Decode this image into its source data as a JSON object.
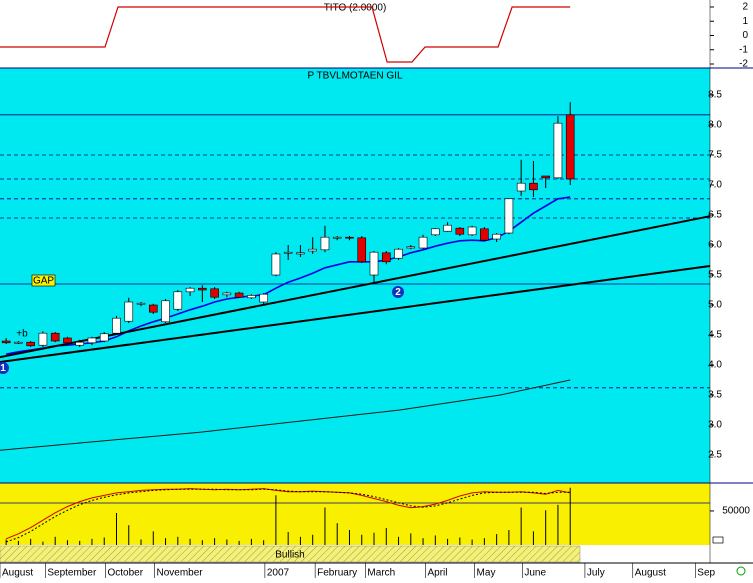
{
  "chart_data": [
    {
      "type": "line",
      "title": "TITO (2.0000)",
      "color": "#d00000",
      "x": [
        -0.5,
        8.06,
        9.12,
        29.84,
        31.07,
        33.1,
        34.17,
        40.12,
        41.26,
        46
      ],
      "values": [
        -0.81,
        -0.81,
        2,
        2,
        -1.86,
        -1.86,
        -0.81,
        -0.81,
        2,
        2
      ],
      "xlim": [
        -0.5,
        57.4
      ],
      "ylim": [
        -2.28,
        2.49
      ],
      "yticks": [
        2,
        1,
        0,
        -1,
        -2
      ]
    },
    {
      "type": "candlestick",
      "title": "P TBVLMOTAEN GIL",
      "up_color": "#ffffff",
      "down_color": "#e00000",
      "x": [
        0,
        1,
        2,
        3,
        4,
        5,
        6,
        7,
        8,
        9,
        10,
        11,
        12,
        13,
        14,
        15,
        16,
        17,
        18,
        19,
        20,
        21,
        22,
        23,
        24,
        25,
        26,
        27,
        28,
        29,
        30,
        31,
        32,
        33,
        34,
        35,
        36,
        37,
        38,
        39,
        40,
        41,
        42,
        43,
        44,
        45,
        46
      ],
      "open": [
        4.4,
        4.37,
        4.38,
        4.33,
        4.53,
        4.45,
        4.33,
        4.37,
        4.4,
        4.53,
        4.73,
        5.02,
        5.0,
        4.72,
        4.93,
        5.22,
        5.28,
        5.27,
        5.17,
        5.2,
        5.12,
        5.05,
        5.5,
        5.87,
        5.85,
        5.9,
        5.92,
        6.12,
        6.13,
        6.12,
        5.5,
        5.87,
        5.78,
        5.95,
        5.95,
        6.17,
        6.23,
        6.28,
        6.17,
        6.27,
        6.1,
        6.2,
        6.9,
        7.03,
        7.15,
        7.12,
        8.17
      ],
      "high": [
        4.45,
        4.4,
        4.4,
        4.56,
        4.55,
        4.47,
        4.42,
        4.47,
        4.55,
        4.82,
        5.12,
        5.05,
        5.02,
        5.1,
        5.25,
        5.3,
        5.33,
        5.3,
        5.22,
        5.22,
        5.18,
        5.2,
        5.88,
        6.0,
        6.0,
        6.13,
        6.32,
        6.15,
        6.15,
        6.15,
        5.9,
        5.9,
        5.95,
        6.0,
        6.17,
        6.28,
        6.38,
        6.3,
        6.32,
        6.3,
        6.2,
        6.78,
        7.42,
        7.4,
        7.15,
        8.15,
        8.38
      ],
      "low": [
        4.35,
        4.35,
        4.3,
        4.3,
        4.38,
        4.35,
        4.3,
        4.33,
        4.38,
        4.5,
        4.7,
        4.98,
        4.85,
        4.7,
        4.9,
        5.15,
        5.05,
        5.1,
        5.13,
        5.12,
        5.1,
        5.0,
        5.48,
        5.75,
        5.8,
        5.85,
        5.88,
        6.08,
        6.08,
        5.7,
        5.35,
        5.68,
        5.75,
        5.93,
        5.93,
        6.15,
        6.22,
        6.15,
        6.15,
        6.07,
        6.05,
        6.18,
        6.82,
        6.8,
        6.95,
        7.1,
        7.0
      ],
      "close": [
        4.37,
        4.38,
        4.32,
        4.53,
        4.4,
        4.37,
        4.38,
        4.45,
        4.52,
        4.78,
        5.05,
        5.03,
        4.88,
        5.07,
        5.22,
        5.28,
        5.25,
        5.13,
        5.2,
        5.13,
        5.16,
        5.18,
        5.85,
        5.88,
        5.87,
        5.93,
        6.13,
        6.13,
        6.12,
        5.72,
        5.88,
        5.72,
        5.93,
        5.97,
        6.13,
        6.27,
        6.33,
        6.18,
        6.3,
        6.08,
        6.18,
        6.77,
        7.03,
        6.92,
        7.12,
        8.03,
        7.1
      ],
      "lines": [
        {
          "color": "#0000e0",
          "x": [
            0,
            1,
            2,
            3,
            4,
            5,
            6,
            7,
            8,
            9,
            10,
            11,
            12,
            13,
            14,
            15,
            16,
            17,
            18,
            19,
            20,
            21,
            22,
            23,
            24,
            25,
            26,
            27,
            28,
            29,
            30,
            31,
            32,
            33,
            34,
            35,
            36,
            37,
            38,
            39,
            40,
            41,
            42,
            43,
            44,
            45,
            46
          ],
          "values": [
            4.18,
            4.22,
            4.25,
            4.28,
            4.32,
            4.33,
            4.35,
            4.37,
            4.4,
            4.47,
            4.57,
            4.65,
            4.72,
            4.78,
            4.85,
            4.92,
            4.98,
            5.05,
            5.1,
            5.13,
            5.15,
            5.17,
            5.28,
            5.38,
            5.45,
            5.53,
            5.62,
            5.67,
            5.72,
            5.72,
            5.72,
            5.75,
            5.8,
            5.87,
            5.92,
            5.98,
            6.03,
            6.07,
            6.08,
            6.07,
            6.12,
            6.23,
            6.38,
            6.53,
            6.65,
            6.77,
            6.8
          ]
        },
        {
          "color": "#000000",
          "x": [
            -0.5,
            57.4
          ],
          "values": [
            4.13,
            6.48
          ]
        },
        {
          "color": "#000000",
          "x": [
            -0.5,
            57.4
          ],
          "values": [
            4.05,
            5.65
          ]
        },
        {
          "color": "#1a1a1a",
          "x": [
            -0.5,
            15.8,
            32.1,
            40.3,
            46
          ],
          "values": [
            2.58,
            2.88,
            3.25,
            3.5,
            3.75
          ]
        }
      ],
      "hlines": [
        {
          "value": 8.17,
          "style": "solid"
        },
        {
          "value": 7.5,
          "style": "dashed"
        },
        {
          "value": 7.1,
          "style": "dashed"
        },
        {
          "value": 6.77,
          "style": "dashed"
        },
        {
          "value": 6.45,
          "style": "dashed"
        },
        {
          "value": 5.35,
          "style": "solid"
        },
        {
          "value": 3.62,
          "style": "dashed"
        }
      ],
      "annotations": [
        "GAP",
        "+b",
        "1",
        "2"
      ],
      "xlim": [
        -0.5,
        57.4
      ],
      "ylim": [
        2.0333,
        8.95
      ],
      "yticks": [
        {
          "value": 8.5,
          "label": "8.5"
        },
        {
          "value": 8,
          "label": "8.0"
        },
        7.5,
        {
          "value": 7,
          "label": "7.0"
        },
        6.5,
        {
          "value": 6,
          "label": "6.0"
        },
        5.5,
        {
          "value": 5,
          "label": "5.0"
        },
        4.5,
        {
          "value": 4,
          "label": "4.0"
        },
        3.5,
        {
          "value": 3,
          "label": "3.0"
        },
        2.5
      ],
      "xticks": [
        {
          "value": -0.5,
          "label": "August"
        },
        {
          "value": 3.2,
          "label": "September"
        },
        {
          "value": 8.1,
          "label": "October"
        },
        {
          "value": 12.1,
          "label": "November"
        },
        {
          "value": 21.1,
          "label": "2007"
        },
        {
          "value": 25.2,
          "label": "February"
        },
        {
          "value": 29.3,
          "label": "March"
        },
        {
          "value": 34.2,
          "label": "April"
        },
        {
          "value": 38.2,
          "label": "May"
        },
        {
          "value": 42.1,
          "label": "June"
        },
        {
          "value": 47.2,
          "label": "July"
        },
        {
          "value": 51.1,
          "label": "August"
        },
        {
          "value": 56.2,
          "label": "Sep"
        }
      ]
    },
    {
      "type": "volume",
      "color": "#000000",
      "x": [
        0,
        1,
        2,
        3,
        4,
        5,
        6,
        7,
        8,
        9,
        10,
        11,
        12,
        13,
        14,
        15,
        16,
        17,
        18,
        19,
        20,
        21,
        22,
        23,
        24,
        25,
        26,
        27,
        28,
        29,
        30,
        31,
        32,
        33,
        34,
        35,
        36,
        37,
        38,
        39,
        40,
        41,
        42,
        43,
        44,
        45,
        46
      ],
      "values": [
        8000,
        6000,
        9000,
        5000,
        12000,
        7000,
        6000,
        9000,
        11000,
        47000,
        29000,
        8000,
        20000,
        10000,
        12000,
        9000,
        7000,
        10000,
        8000,
        6000,
        9000,
        7000,
        73000,
        19000,
        12000,
        15000,
        55000,
        32000,
        22000,
        15000,
        18000,
        25000,
        12000,
        17000,
        10000,
        14000,
        9000,
        11000,
        8000,
        10000,
        16000,
        22000,
        55000,
        20000,
        51000,
        59000,
        84000
      ],
      "hlines": [
        {
          "value": 61600,
          "style": "solid"
        }
      ],
      "xlim": [
        -0.5,
        57.4
      ],
      "ylim": [
        0,
        91000
      ],
      "yticks": [
        50000
      ],
      "oscillator": {
        "ylim": [
          0,
          100
        ],
        "series": [
          {
            "color": "#d00000",
            "style": "solid",
            "values": [
              10,
              18,
              28,
              40,
              52,
              62,
              70,
              76,
              80,
              84,
              86,
              88,
              89,
              90,
              90,
              91,
              90,
              89,
              90,
              89,
              90,
              91,
              88,
              86,
              86,
              87,
              86,
              85,
              84,
              80,
              75,
              70,
              64,
              60,
              62,
              66,
              72,
              79,
              84,
              86,
              85,
              85,
              86,
              84,
              82,
              88,
              84
            ]
          },
          {
            "color": "#000000",
            "style": "dotted",
            "values": [
              5,
              12,
              22,
              34,
              46,
              56,
              65,
              72,
              77,
              81,
              84,
              86,
              88,
              89,
              90,
              90,
              90,
              90,
              89,
              89,
              89,
              90,
              89,
              87,
              86,
              86,
              86,
              85,
              84,
              82,
              78,
              73,
              68,
              63,
              61,
              63,
              68,
              74,
              80,
              84,
              85,
              85,
              85,
              85,
              83,
              85,
              85
            ]
          }
        ]
      },
      "band_label": "Bullish"
    }
  ]
}
